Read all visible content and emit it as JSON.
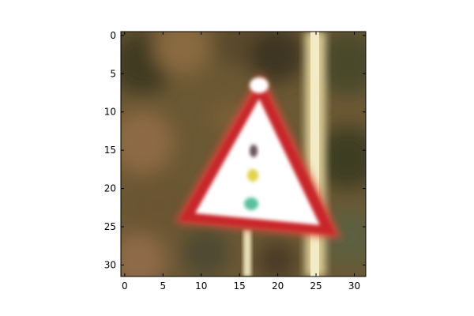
{
  "image": {
    "subject": "triangle-warning-traffic-sign-with-signal-lights",
    "pixel_grid": [
      32,
      32
    ],
    "colors": {
      "background": "#6e5a34",
      "sign_border": "#cc2a2c",
      "sign_face": "#ffffff",
      "pole": "#efe6b8",
      "signal_dark": "#6a5060",
      "signal_yellow": "#e3d24a",
      "signal_green": "#58c0a0"
    }
  },
  "axes": {
    "x_ticks": [
      "0",
      "5",
      "10",
      "15",
      "20",
      "25",
      "30"
    ],
    "y_ticks": [
      "0",
      "5",
      "10",
      "15",
      "20",
      "25",
      "30"
    ],
    "x_tick_values": [
      0,
      5,
      10,
      15,
      20,
      25,
      30
    ],
    "y_tick_values": [
      0,
      5,
      10,
      15,
      20,
      25,
      30
    ],
    "range": [
      -0.5,
      31.5
    ]
  }
}
